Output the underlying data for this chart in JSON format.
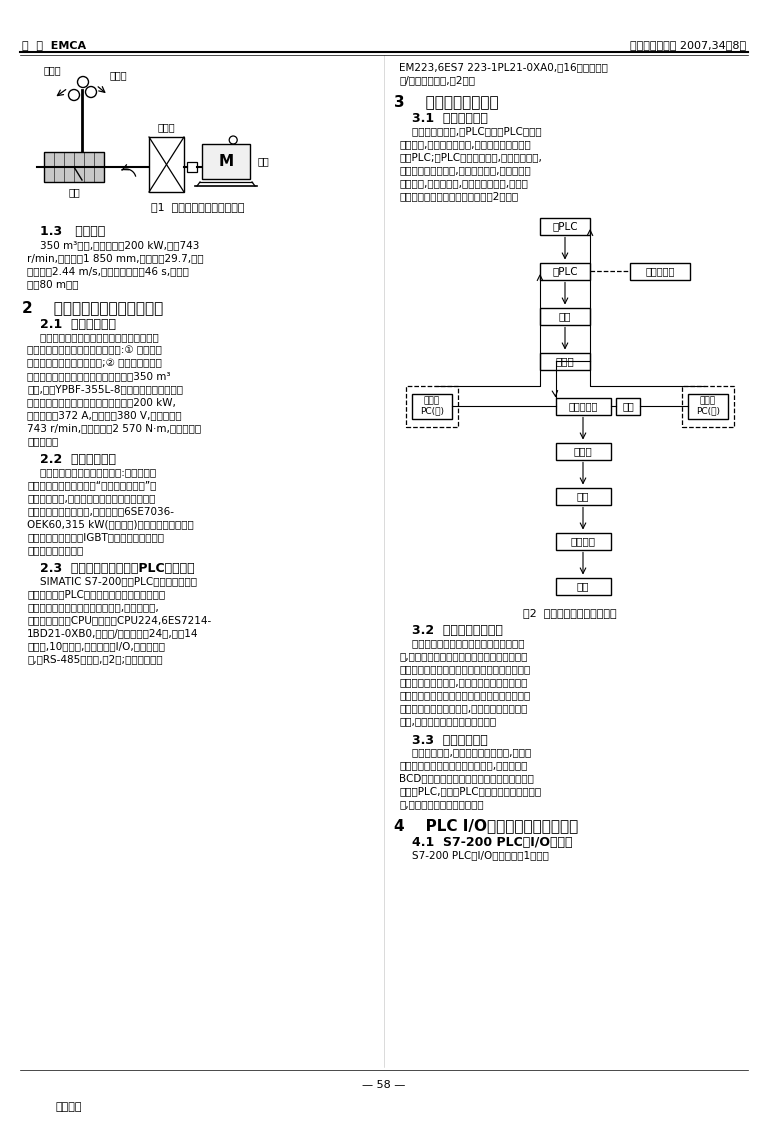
{
  "header_left": "应  用  EMCA",
  "header_right": "电机与控制应用 2007,34（8）",
  "bg_color": "#ffffff",
  "fig1_caption": "图1  料车机械传动系统原理图",
  "fig2_caption": "图2  变频速调系统工作原理图",
  "footer_center": "— 58 —",
  "footer_bottom": "万方数据"
}
